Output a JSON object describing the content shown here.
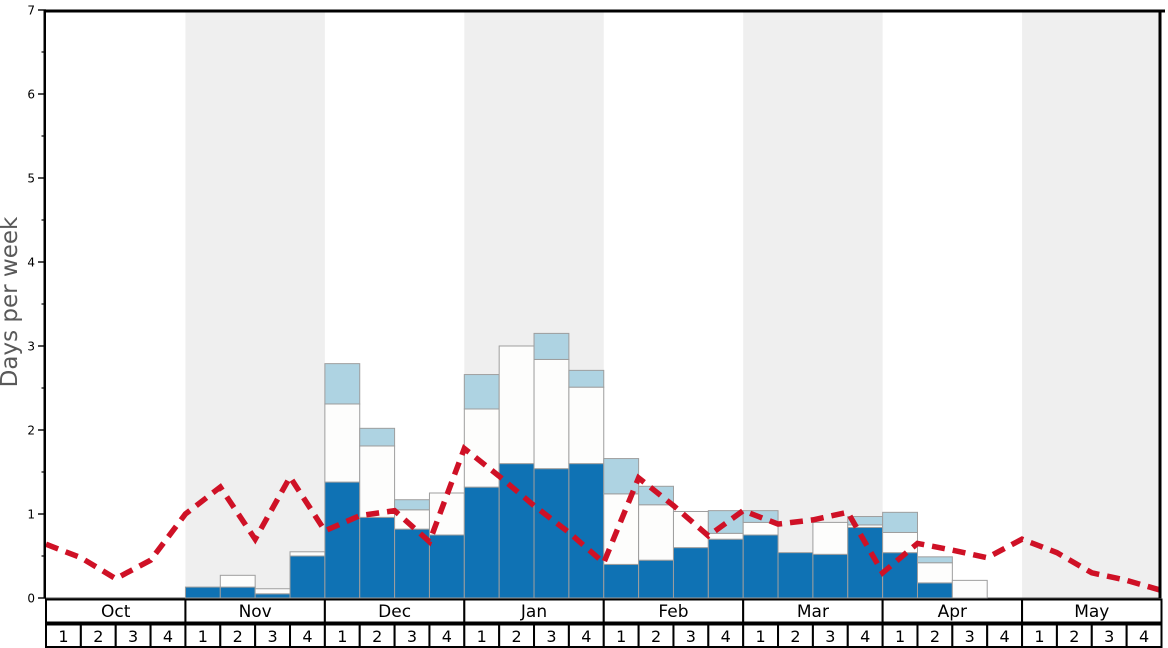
{
  "chart_data": {
    "type": "bar",
    "title": "",
    "ylabel": "Days per week",
    "ylim": [
      0,
      7
    ],
    "y_major_ticks": [
      0,
      1,
      2,
      3,
      4,
      5,
      6,
      7
    ],
    "y_minor_tick_step": 0.5,
    "months": [
      "Oct",
      "Nov",
      "Dec",
      "Jan",
      "Feb",
      "Mar",
      "Apr",
      "May"
    ],
    "shaded_months": [
      "Nov",
      "Jan",
      "Mar",
      "May"
    ],
    "weeks_per_month": 4,
    "week_labels": [
      "1",
      "2",
      "3",
      "4"
    ],
    "categories": [
      "Oct 1",
      "Oct 2",
      "Oct 3",
      "Oct 4",
      "Nov 1",
      "Nov 2",
      "Nov 3",
      "Nov 4",
      "Dec 1",
      "Dec 2",
      "Dec 3",
      "Dec 4",
      "Jan 1",
      "Jan 2",
      "Jan 3",
      "Jan 4",
      "Feb 1",
      "Feb 2",
      "Feb 3",
      "Feb 4",
      "Mar 1",
      "Mar 2",
      "Mar 3",
      "Mar 4",
      "Apr 1",
      "Apr 2",
      "Apr 3",
      "Apr 4",
      "May 1",
      "May 2",
      "May 3",
      "May 4"
    ],
    "stacked_series": [
      {
        "name": "dark-blue",
        "color": "#0f72b4",
        "values": [
          0,
          0,
          0,
          0,
          0.13,
          0.13,
          0.05,
          0.5,
          1.38,
          0.96,
          0.82,
          0.75,
          1.32,
          1.6,
          1.54,
          1.6,
          0.4,
          0.45,
          0.6,
          0.7,
          0.75,
          0.54,
          0.52,
          0.84,
          0.54,
          0.18,
          0,
          0,
          0,
          0,
          0,
          0
        ]
      },
      {
        "name": "white",
        "color": "#fdfdfc",
        "values": [
          0,
          0,
          0,
          0,
          0,
          0.14,
          0.06,
          0.05,
          0.93,
          0.85,
          0.23,
          0.5,
          0.93,
          1.4,
          1.3,
          0.91,
          0.84,
          0.66,
          0.43,
          0.07,
          0.15,
          0,
          0.38,
          0.03,
          0.24,
          0.24,
          0.21,
          0,
          0,
          0,
          0,
          0
        ]
      },
      {
        "name": "light-blue",
        "color": "#aed3e2",
        "values": [
          0,
          0,
          0,
          0,
          0,
          0,
          0,
          0,
          0.48,
          0.21,
          0.12,
          0,
          0.41,
          0,
          0.31,
          0.2,
          0.42,
          0.22,
          0,
          0.27,
          0.14,
          0,
          0,
          0.1,
          0.24,
          0.07,
          0,
          0,
          0,
          0,
          0,
          0
        ]
      }
    ],
    "line_series": {
      "name": "red-dashed",
      "color": "#cf1126",
      "vertex_positions": "week-boundaries",
      "values": [
        0.64,
        0.48,
        0.23,
        0.45,
        1.0,
        1.32,
        0.7,
        1.44,
        0.8,
        0.98,
        1.04,
        0.67,
        1.78,
        1.45,
        1.1,
        0.78,
        0.42,
        1.43,
        1.1,
        0.74,
        1.04,
        0.88,
        0.93,
        1.02,
        0.3,
        0.65,
        0.57,
        0.48,
        0.7,
        0.54,
        0.3,
        0.21,
        0.09
      ]
    },
    "legend": "none",
    "grid": "off",
    "colors": {
      "bar_blue": "#0f72b4",
      "bar_white": "#fdfdfc",
      "bar_light_blue": "#aed3e2",
      "bar_border": "#9e9e9e",
      "line_red": "#cf1126",
      "month_band": "#efefef",
      "frame": "#000000",
      "axis_text": "#000000",
      "ylabel_text": "#595959",
      "baseline": "#555555",
      "table_border": "#000000",
      "table_fill": "#ffffff"
    }
  }
}
